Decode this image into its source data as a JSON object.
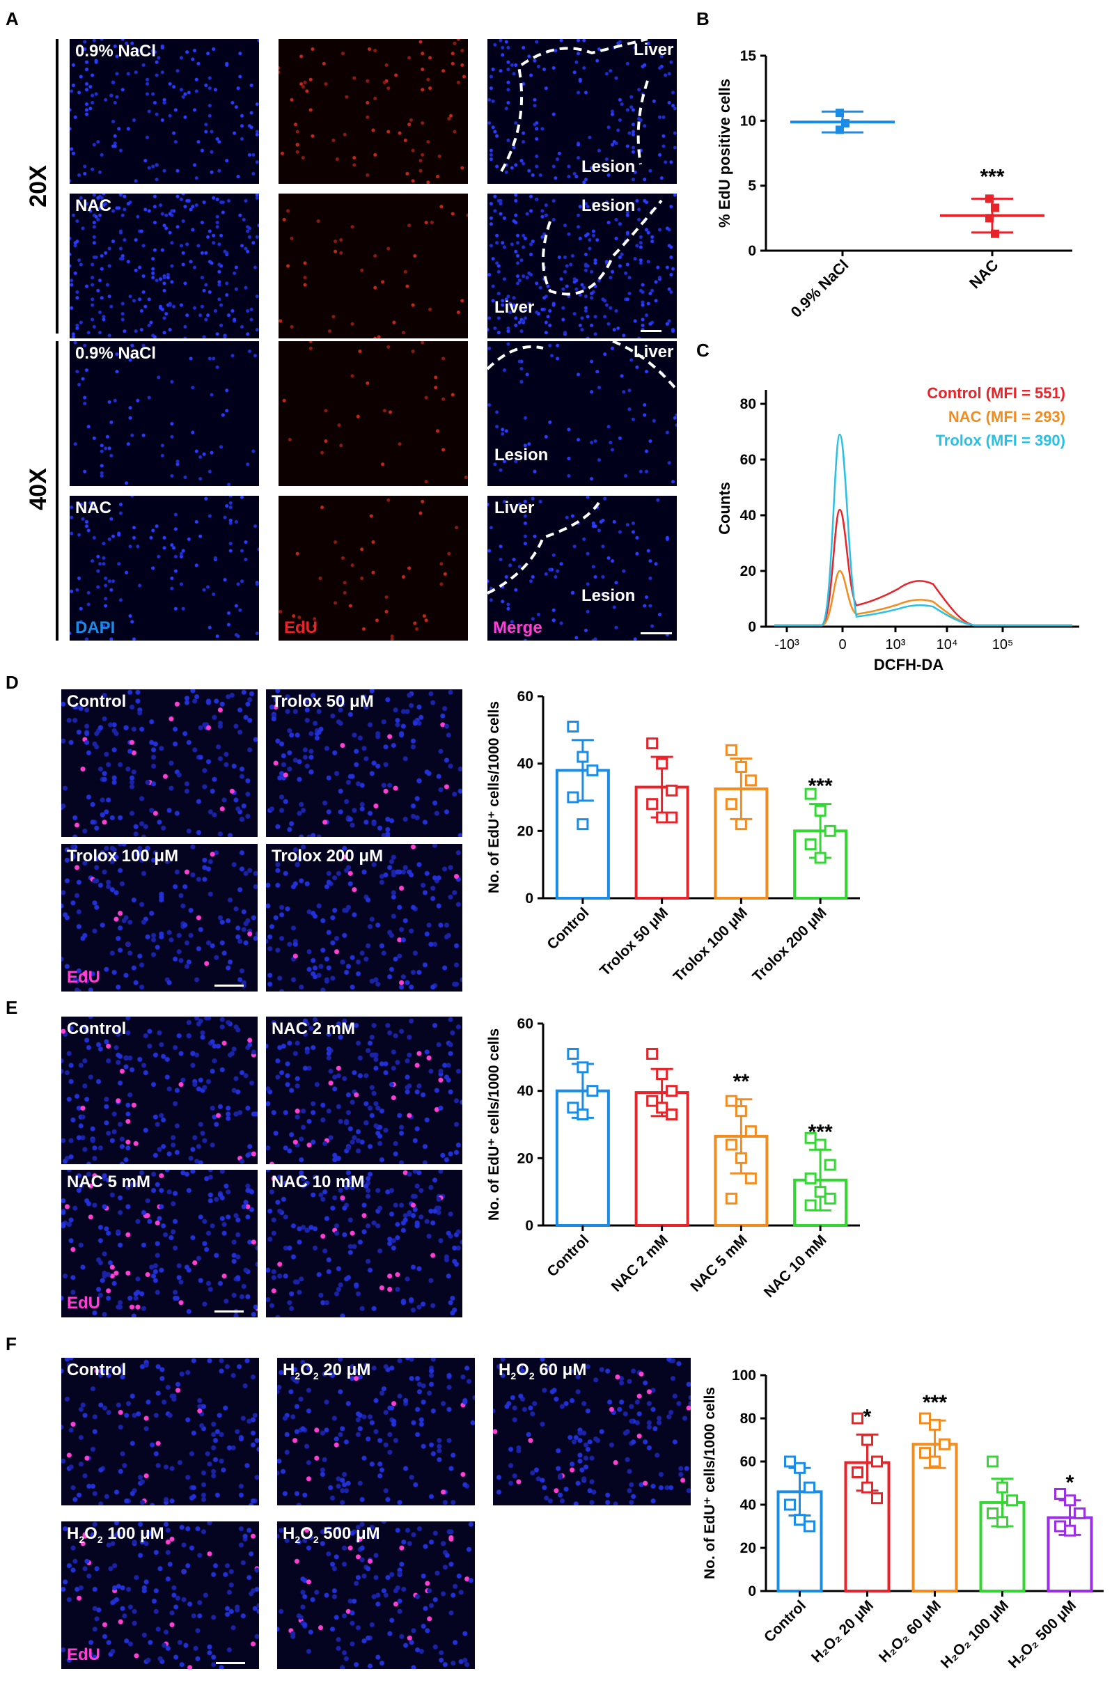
{
  "panels": {
    "A": "A",
    "B": "B",
    "C": "C",
    "D": "D",
    "E": "E",
    "F": "F"
  },
  "panelA": {
    "mag20": "20X",
    "mag40": "40X",
    "labels": {
      "nacl": "0.9% NaCl",
      "nac": "NAC",
      "liver": "Liver",
      "lesion": "Lesion",
      "dapi": "DAPI",
      "edu": "EdU",
      "merge": "Merge"
    }
  },
  "panelD": {
    "labels": [
      "Control",
      "Trolox 50 μM",
      "Trolox 100 μM",
      "Trolox 200 μM"
    ],
    "stain": "EdU"
  },
  "panelE": {
    "labels": [
      "Control",
      "NAC 2 mM",
      "NAC 5 mM",
      "NAC 10 mM"
    ],
    "stain": "EdU"
  },
  "panelF": {
    "labels": [
      {
        "pre": "Control",
        "sub": "",
        "post": ""
      },
      {
        "pre": "H",
        "sub": "2",
        "mid": "O",
        "sub2": "2",
        "post": " 20 μM"
      },
      {
        "pre": "H",
        "sub": "2",
        "mid": "O",
        "sub2": "2",
        "post": " 60 μM"
      },
      {
        "pre": "H",
        "sub": "2",
        "mid": "O",
        "sub2": "2",
        "post": " 100 μM"
      },
      {
        "pre": "H",
        "sub": "2",
        "mid": "O",
        "sub2": "2",
        "post": " 500 μM"
      }
    ],
    "stain": "EdU"
  },
  "colors": {
    "blue": "#1a8ce6",
    "red": "#e8232a",
    "orange": "#f28c1e",
    "green": "#33d633",
    "purple": "#9b2ee6",
    "cyan": "#29c0e6"
  },
  "chart_data": [
    {
      "id": "B",
      "type": "scatter",
      "ylabel": "% EdU positive cells",
      "categories": [
        "0.9% NaCl",
        "NAC"
      ],
      "ylim": [
        0,
        15
      ],
      "yticks": [
        0,
        5,
        10,
        15
      ],
      "series": [
        {
          "category": "0.9% NaCl",
          "mean": 9.9,
          "sd": 0.8,
          "points": [
            10.6,
            9.8,
            9.3
          ],
          "color": "#1a8ce6",
          "marker": "square"
        },
        {
          "category": "NAC",
          "mean": 2.7,
          "sd": 1.3,
          "points": [
            4.0,
            3.3,
            2.5,
            1.3
          ],
          "color": "#e8232a",
          "marker": "square"
        }
      ],
      "significance": [
        "",
        "***"
      ]
    },
    {
      "id": "C",
      "type": "line",
      "xlabel": "DCFH-DA",
      "ylabel": "Counts",
      "ylim": [
        0,
        85
      ],
      "yticks": [
        0,
        20,
        40,
        60,
        80
      ],
      "xticks": [
        "-10³",
        "0",
        "10³",
        "10⁴",
        "10⁵"
      ],
      "series": [
        {
          "name": "Control (MFI = 551)",
          "color": "#e8232a",
          "peak": 42,
          "second": 17
        },
        {
          "name": "NAC (MFI = 293)",
          "color": "#f28c1e",
          "peak": 20,
          "second": 10
        },
        {
          "name": "Trolox (MFI = 390)",
          "color": "#29c0e6",
          "peak": 69,
          "second": 8
        }
      ]
    },
    {
      "id": "D",
      "type": "bar",
      "ylabel": "No. of EdU⁺ cells/1000 cells",
      "categories": [
        "Control",
        "Trolox 50 μM",
        "Trolox 100 μM",
        "Trolox 200 μM"
      ],
      "ylim": [
        0,
        60
      ],
      "yticks": [
        0,
        20,
        40,
        60
      ],
      "values": [
        38,
        33,
        32.5,
        20
      ],
      "sd": [
        9,
        9,
        9,
        8
      ],
      "points": [
        [
          51,
          42,
          38,
          30,
          22
        ],
        [
          46,
          40,
          32,
          28,
          24,
          24
        ],
        [
          44,
          39,
          35,
          28,
          22
        ],
        [
          31,
          26,
          20,
          16,
          12
        ]
      ],
      "colors": [
        "#1a8ce6",
        "#e8232a",
        "#f28c1e",
        "#33d633"
      ],
      "significance": [
        "",
        "",
        "",
        "***"
      ]
    },
    {
      "id": "E",
      "type": "bar",
      "ylabel": "No. of EdU⁺ cells/1000 cells",
      "categories": [
        "Control",
        "NAC 2 mM",
        "NAC 5 mM",
        "NAC 10 mM"
      ],
      "ylim": [
        0,
        60
      ],
      "yticks": [
        0,
        20,
        40,
        60
      ],
      "values": [
        40,
        39.5,
        26.5,
        13.5
      ],
      "sd": [
        8,
        7,
        11,
        9
      ],
      "points": [
        [
          51,
          47,
          40,
          35,
          33
        ],
        [
          51,
          45,
          40,
          37,
          35,
          33
        ],
        [
          37,
          34,
          28,
          24,
          20,
          14,
          8
        ],
        [
          26,
          24,
          18,
          14,
          10,
          8,
          6
        ]
      ],
      "colors": [
        "#1a8ce6",
        "#e8232a",
        "#f28c1e",
        "#33d633"
      ],
      "significance": [
        "",
        "",
        "**",
        "***"
      ]
    },
    {
      "id": "F",
      "type": "bar",
      "ylabel": "No. of EdU⁺ cells/1000 cells",
      "categories": [
        "Control",
        "H₂O₂ 20 μM",
        "H₂O₂ 60 μM",
        "H₂O₂ 100 μM",
        "H₂O₂ 500 μM"
      ],
      "ylim": [
        0,
        100
      ],
      "yticks": [
        0,
        20,
        40,
        60,
        80,
        100
      ],
      "values": [
        46,
        59.5,
        68,
        41,
        34
      ],
      "sd": [
        11,
        13,
        11,
        11,
        8
      ],
      "points": [
        [
          60,
          57,
          48,
          40,
          33,
          30
        ],
        [
          80,
          70,
          60,
          55,
          48,
          43
        ],
        [
          80,
          77,
          68,
          64,
          60
        ],
        [
          60,
          48,
          42,
          36,
          32
        ],
        [
          45,
          42,
          36,
          30,
          28
        ]
      ],
      "colors": [
        "#1a8ce6",
        "#e8232a",
        "#f28c1e",
        "#33d633",
        "#9b2ee6"
      ],
      "significance": [
        "",
        "*",
        "***",
        "",
        "*"
      ]
    }
  ]
}
